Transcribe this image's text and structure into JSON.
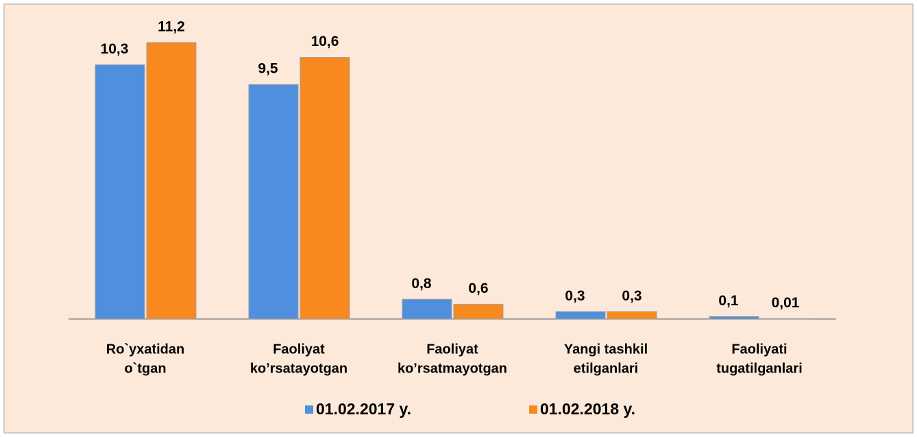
{
  "chart_data": {
    "type": "bar",
    "categories": [
      [
        "Ro`yxatidan",
        "o`tgan"
      ],
      [
        "Faoliyat",
        "ko’rsatayotgan"
      ],
      [
        "Faoliyat",
        "ko’rsatmayotgan"
      ],
      [
        "Yangi tashkil",
        "etilganlari"
      ],
      [
        "Faoliyati",
        "tugatilganlari"
      ]
    ],
    "series": [
      {
        "name": "01.02.2017 y.",
        "color": "#4f8fde",
        "values": [
          10.3,
          9.5,
          0.8,
          0.3,
          0.1
        ],
        "value_labels": [
          "10,3",
          "9,5",
          "0,8",
          "0,3",
          "0,1"
        ]
      },
      {
        "name": "01.02.2018 y.",
        "color": "#f7891f",
        "values": [
          11.2,
          10.6,
          0.6,
          0.3,
          0.01
        ],
        "value_labels": [
          "11,2",
          "10,6",
          "0,6",
          "0,3",
          "0,01"
        ]
      }
    ],
    "legend": "bottom"
  }
}
